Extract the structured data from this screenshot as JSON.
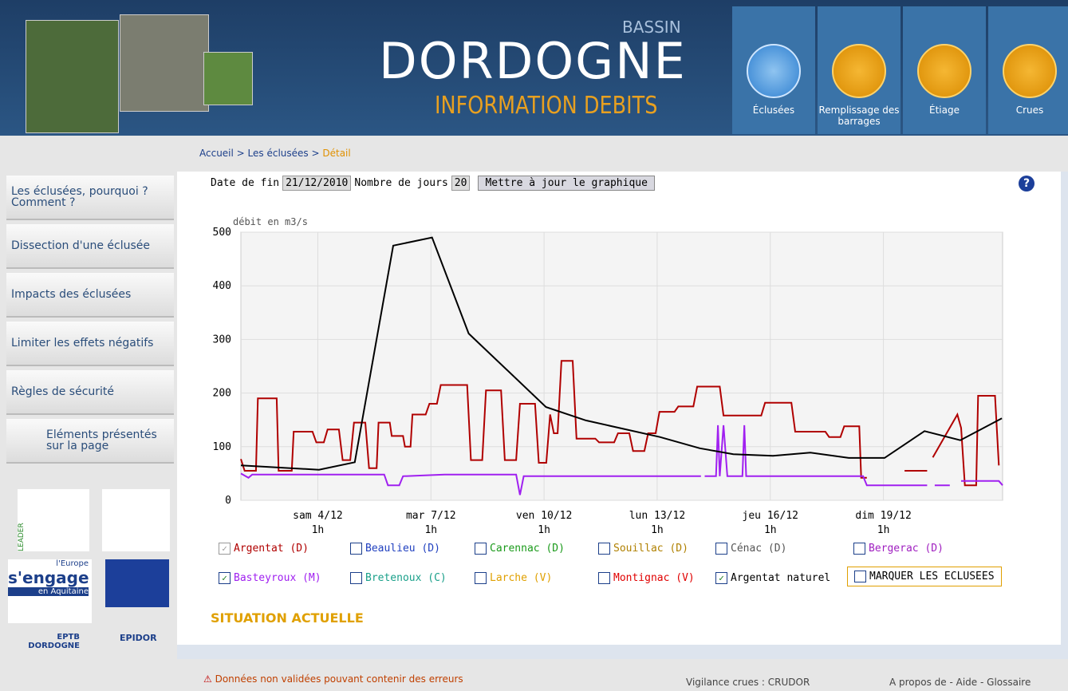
{
  "header": {
    "bassin": "BASSIN",
    "title": "DORDOGNE",
    "subtitle": "INFORMATION DEBITS",
    "nav": [
      "Éclusées",
      "Remplissage des barrages",
      "Étiage",
      "Crues"
    ]
  },
  "breadcrumb": [
    "Accueil",
    "Les éclusées",
    "Détail"
  ],
  "menu": [
    "Les éclusées, pourquoi ? Comment ?",
    "Dissection d'une éclusée",
    "Impacts des éclusées",
    "Limiter les effets négatifs",
    "Règles de sécurité",
    "Eléments présentés sur la page"
  ],
  "logos": {
    "leader": "LEADER",
    "europe": "l'Europe",
    "engage": "s'engage",
    "aquitaine": "en Aquitaine",
    "eptb": "EPTB DORDOGNE",
    "epidor": "EPIDOR"
  },
  "form": {
    "date_label": "Date de fin",
    "date": "21/12/2010",
    "days_label": "Nombre de jours",
    "days": "20",
    "button": "Mettre à jour le graphique"
  },
  "chart_data": {
    "type": "line",
    "y_label": "débit en m3/s",
    "xlim": [
      2,
      22.2
    ],
    "ylim": [
      0,
      500
    ],
    "yticks": [
      0,
      100,
      200,
      300,
      400,
      500
    ],
    "grid": true,
    "xticks": [
      {
        "value": 4.04,
        "label": "sam 4/12\n1h"
      },
      {
        "value": 7.04,
        "label": "mar 7/12\n1h"
      },
      {
        "value": 10.04,
        "label": "ven 10/12\n1h"
      },
      {
        "value": 13.04,
        "label": "lun 13/12\n1h"
      },
      {
        "value": 16.04,
        "label": "jeu 16/12\n1h"
      },
      {
        "value": 19.04,
        "label": "dim 19/12\n1h"
      }
    ],
    "series": [
      {
        "color": "#b00000",
        "x": [
          2.0,
          2.1,
          2.4,
          2.45,
          2.95,
          3.0,
          3.35,
          3.4,
          3.9,
          4.0,
          4.2,
          4.3,
          4.6,
          4.7,
          4.9,
          5.0,
          5.3,
          5.4,
          5.6,
          5.65,
          5.95,
          6.0,
          6.3,
          6.35,
          6.5,
          6.55,
          6.9,
          7.0,
          7.2,
          7.3,
          8.0,
          8.1,
          8.4,
          8.5,
          8.9,
          9.0,
          9.3,
          9.4,
          9.8,
          9.9,
          10.1,
          10.2,
          10.3,
          10.4,
          10.5,
          10.8,
          10.9,
          11.4,
          11.5,
          11.9,
          12.0,
          12.3,
          12.4,
          12.7,
          12.8,
          13.0,
          13.1,
          13.5,
          13.6,
          14.0,
          14.1,
          14.7,
          14.8,
          15.8,
          15.9,
          16.6,
          16.7,
          17.5,
          17.6,
          17.9,
          18.0,
          18.4,
          18.45,
          18.6,
          18.7,
          19.6,
          20.2,
          20.3,
          20.35,
          21.0,
          21.1,
          21.2,
          21.5,
          21.55,
          22.0,
          22.1
        ],
        "values": [
          77,
          55,
          55,
          190,
          190,
          55,
          55,
          128,
          128,
          108,
          108,
          132,
          132,
          75,
          75,
          145,
          145,
          60,
          60,
          145,
          145,
          120,
          120,
          100,
          100,
          160,
          160,
          180,
          180,
          215,
          215,
          75,
          75,
          205,
          205,
          75,
          75,
          180,
          180,
          70,
          70,
          160,
          125,
          125,
          260,
          260,
          115,
          115,
          108,
          108,
          125,
          125,
          92,
          92,
          125,
          125,
          165,
          165,
          175,
          175,
          212,
          212,
          158,
          158,
          182,
          182,
          128,
          128,
          118,
          118,
          138,
          138,
          42,
          42,
          null,
          55,
          55,
          null,
          80,
          160,
          135,
          28,
          28,
          195,
          195,
          65
        ]
      },
      {
        "color": "#a020f0",
        "x": [
          2.0,
          2.2,
          2.3,
          5.8,
          5.9,
          6.2,
          6.3,
          7.4,
          9.3,
          9.4,
          9.5,
          14.2,
          14.25,
          14.3,
          14.6,
          14.65,
          14.7,
          14.8,
          14.9,
          15.3,
          15.35,
          15.4,
          18.5,
          18.6,
          20.2,
          20.3,
          20.4,
          20.8,
          20.9,
          21.1,
          22.1,
          22.2
        ],
        "values": [
          50,
          42,
          48,
          48,
          28,
          28,
          45,
          48,
          48,
          10,
          45,
          45,
          null,
          45,
          45,
          140,
          45,
          140,
          45,
          45,
          140,
          45,
          45,
          28,
          28,
          null,
          28,
          28,
          null,
          36,
          36,
          28
        ]
      },
      {
        "color": "#000000",
        "x": [
          2.0,
          4.07,
          5.02,
          6.04,
          7.07,
          8.04,
          10.09,
          11.15,
          13.11,
          14.17,
          15.06,
          16.11,
          17.1,
          18.12,
          19.07,
          20.13,
          21.08,
          22.18
        ],
        "values": [
          65,
          57,
          71,
          475,
          490,
          311,
          174,
          149,
          118,
          97,
          86,
          83,
          89,
          79,
          79,
          129,
          112,
          153
        ]
      }
    ]
  },
  "options": [
    [
      {
        "label": "Argentat (D)",
        "color": "#b00000",
        "checked": true
      },
      {
        "label": "Beaulieu (D)",
        "color": "#1f3fbf",
        "checked": false
      },
      {
        "label": "Carennac (D)",
        "color": "#1a9a1a",
        "checked": false
      },
      {
        "label": "Souillac (D)",
        "color": "#b08000",
        "checked": false
      },
      {
        "label": "Cénac (D)",
        "color": "#555555",
        "checked": false
      },
      {
        "label": "Bergerac (D)",
        "color": "#a020c0",
        "checked": false
      }
    ],
    [
      {
        "label": "Basteyroux (M)",
        "color": "#a020f0",
        "checked": true
      },
      {
        "label": "Bretenoux (C)",
        "color": "#1aa08a",
        "checked": false
      },
      {
        "label": "Larche (V)",
        "color": "#e0a000",
        "checked": false
      },
      {
        "label": "Montignac (V)",
        "color": "#e00000",
        "checked": false
      },
      {
        "label": "Argentat naturel",
        "color": "#000000",
        "checked": true
      },
      {
        "label": "MARQUER LES ECLUSEES",
        "color": "#000000",
        "checked": false
      }
    ]
  ],
  "section": "SITUATION ACTUELLE",
  "footer": {
    "warning": "Données non validées pouvant contenir des erreurs",
    "vigilance": "Vigilance crues : CRUDOR",
    "links": "A propos de - Aide - Glossaire"
  }
}
